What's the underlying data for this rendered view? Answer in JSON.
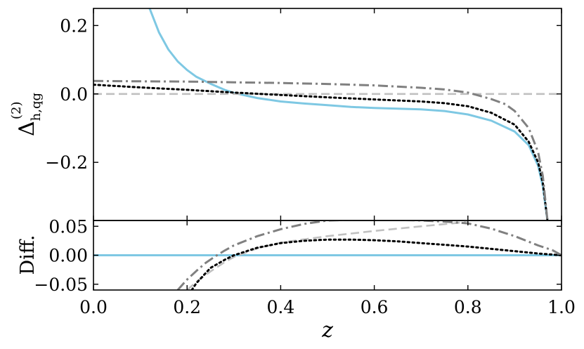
{
  "chart_data": [
    {
      "type": "line",
      "panel": "main",
      "ylabel": "Δ_{h,qg}^{(2)}",
      "ylabel_parts": {
        "base": "Δ",
        "sup": "(2)",
        "sub": "h,qg"
      },
      "xlim": [
        0.0,
        1.0
      ],
      "ylim": [
        -0.37,
        0.25
      ],
      "yticks": [
        -0.2,
        0.0,
        0.2
      ],
      "ytick_labels": [
        "−0.2",
        "0.0",
        "0.2"
      ],
      "grid": false,
      "series": [
        {
          "style": "solid",
          "color": "#7ec8e3",
          "x": [
            0.12,
            0.14,
            0.16,
            0.18,
            0.2,
            0.22,
            0.25,
            0.28,
            0.3,
            0.35,
            0.4,
            0.45,
            0.5,
            0.55,
            0.6,
            0.65,
            0.7,
            0.75,
            0.8,
            0.85,
            0.9,
            0.93,
            0.95,
            0.96,
            0.97
          ],
          "y": [
            0.25,
            0.18,
            0.13,
            0.095,
            0.07,
            0.05,
            0.03,
            0.012,
            0.003,
            -0.012,
            -0.022,
            -0.028,
            -0.033,
            -0.038,
            -0.041,
            -0.043,
            -0.045,
            -0.05,
            -0.06,
            -0.078,
            -0.11,
            -0.15,
            -0.21,
            -0.27,
            -0.37
          ]
        },
        {
          "style": "dashed",
          "color": "#c0c0c0",
          "x": [
            0.0,
            1.0
          ],
          "y": [
            0.0,
            0.0
          ]
        },
        {
          "style": "dotted",
          "color": "#000000",
          "x": [
            0.0,
            0.1,
            0.2,
            0.3,
            0.4,
            0.5,
            0.6,
            0.7,
            0.75,
            0.8,
            0.85,
            0.9,
            0.93,
            0.95,
            0.96,
            0.97
          ],
          "y": [
            0.027,
            0.019,
            0.012,
            0.004,
            -0.003,
            -0.01,
            -0.016,
            -0.022,
            -0.027,
            -0.036,
            -0.055,
            -0.09,
            -0.14,
            -0.2,
            -0.26,
            -0.37
          ]
        },
        {
          "style": "dashdot",
          "color": "#808080",
          "x": [
            0.0,
            0.1,
            0.2,
            0.3,
            0.4,
            0.5,
            0.6,
            0.7,
            0.75,
            0.8,
            0.85,
            0.88,
            0.9,
            0.93,
            0.95,
            0.96,
            0.97
          ],
          "y": [
            0.038,
            0.037,
            0.036,
            0.034,
            0.032,
            0.029,
            0.025,
            0.018,
            0.013,
            0.004,
            -0.015,
            -0.03,
            -0.05,
            -0.1,
            -0.17,
            -0.24,
            -0.37
          ]
        }
      ]
    },
    {
      "type": "line",
      "panel": "diff",
      "xlabel": "z",
      "ylabel": "Diff.",
      "xlim": [
        0.0,
        1.0
      ],
      "ylim": [
        -0.06,
        0.06
      ],
      "xticks": [
        0.0,
        0.2,
        0.4,
        0.6,
        0.8,
        1.0
      ],
      "xtick_labels": [
        "0.0",
        "0.2",
        "0.4",
        "0.6",
        "0.8",
        "1.0"
      ],
      "yticks": [
        -0.05,
        0.0,
        0.05
      ],
      "ytick_labels": [
        "−0.05",
        "0.00",
        "0.05"
      ],
      "grid": false,
      "series": [
        {
          "style": "solid",
          "color": "#7ec8e3",
          "x": [
            0.0,
            1.0
          ],
          "y": [
            0.0,
            0.0
          ]
        },
        {
          "style": "dashed",
          "color": "#c0c0c0",
          "x": [
            0.2,
            0.22,
            0.25,
            0.28,
            0.3,
            0.35,
            0.4,
            0.5,
            0.6,
            0.7,
            0.78,
            0.8
          ],
          "y": [
            -0.06,
            -0.046,
            -0.028,
            -0.012,
            -0.003,
            0.012,
            0.022,
            0.033,
            0.042,
            0.05,
            0.056,
            0.06
          ]
        },
        {
          "style": "dotted",
          "color": "#000000",
          "x": [
            0.21,
            0.22,
            0.25,
            0.28,
            0.3,
            0.35,
            0.4,
            0.45,
            0.5,
            0.55,
            0.6,
            0.65,
            0.7,
            0.75,
            0.8,
            0.85,
            0.9,
            0.95,
            1.0
          ],
          "y": [
            -0.06,
            -0.048,
            -0.022,
            -0.008,
            0.0,
            0.013,
            0.021,
            0.025,
            0.027,
            0.027,
            0.026,
            0.024,
            0.021,
            0.018,
            0.015,
            0.011,
            0.007,
            0.003,
            0.0
          ]
        },
        {
          "style": "dashdot",
          "color": "#808080",
          "x": [
            0.18,
            0.2,
            0.22,
            0.24,
            0.26,
            0.28,
            0.3,
            0.35,
            0.4,
            0.45,
            0.5,
            0.6,
            0.7,
            0.75,
            0.8,
            0.85,
            0.9,
            0.95,
            0.98,
            1.0
          ],
          "y": [
            -0.06,
            -0.042,
            -0.027,
            -0.013,
            -0.002,
            0.008,
            0.017,
            0.033,
            0.045,
            0.054,
            0.06,
            0.062,
            0.06,
            0.058,
            0.055,
            0.046,
            0.033,
            0.017,
            0.009,
            0.0
          ]
        }
      ]
    }
  ]
}
